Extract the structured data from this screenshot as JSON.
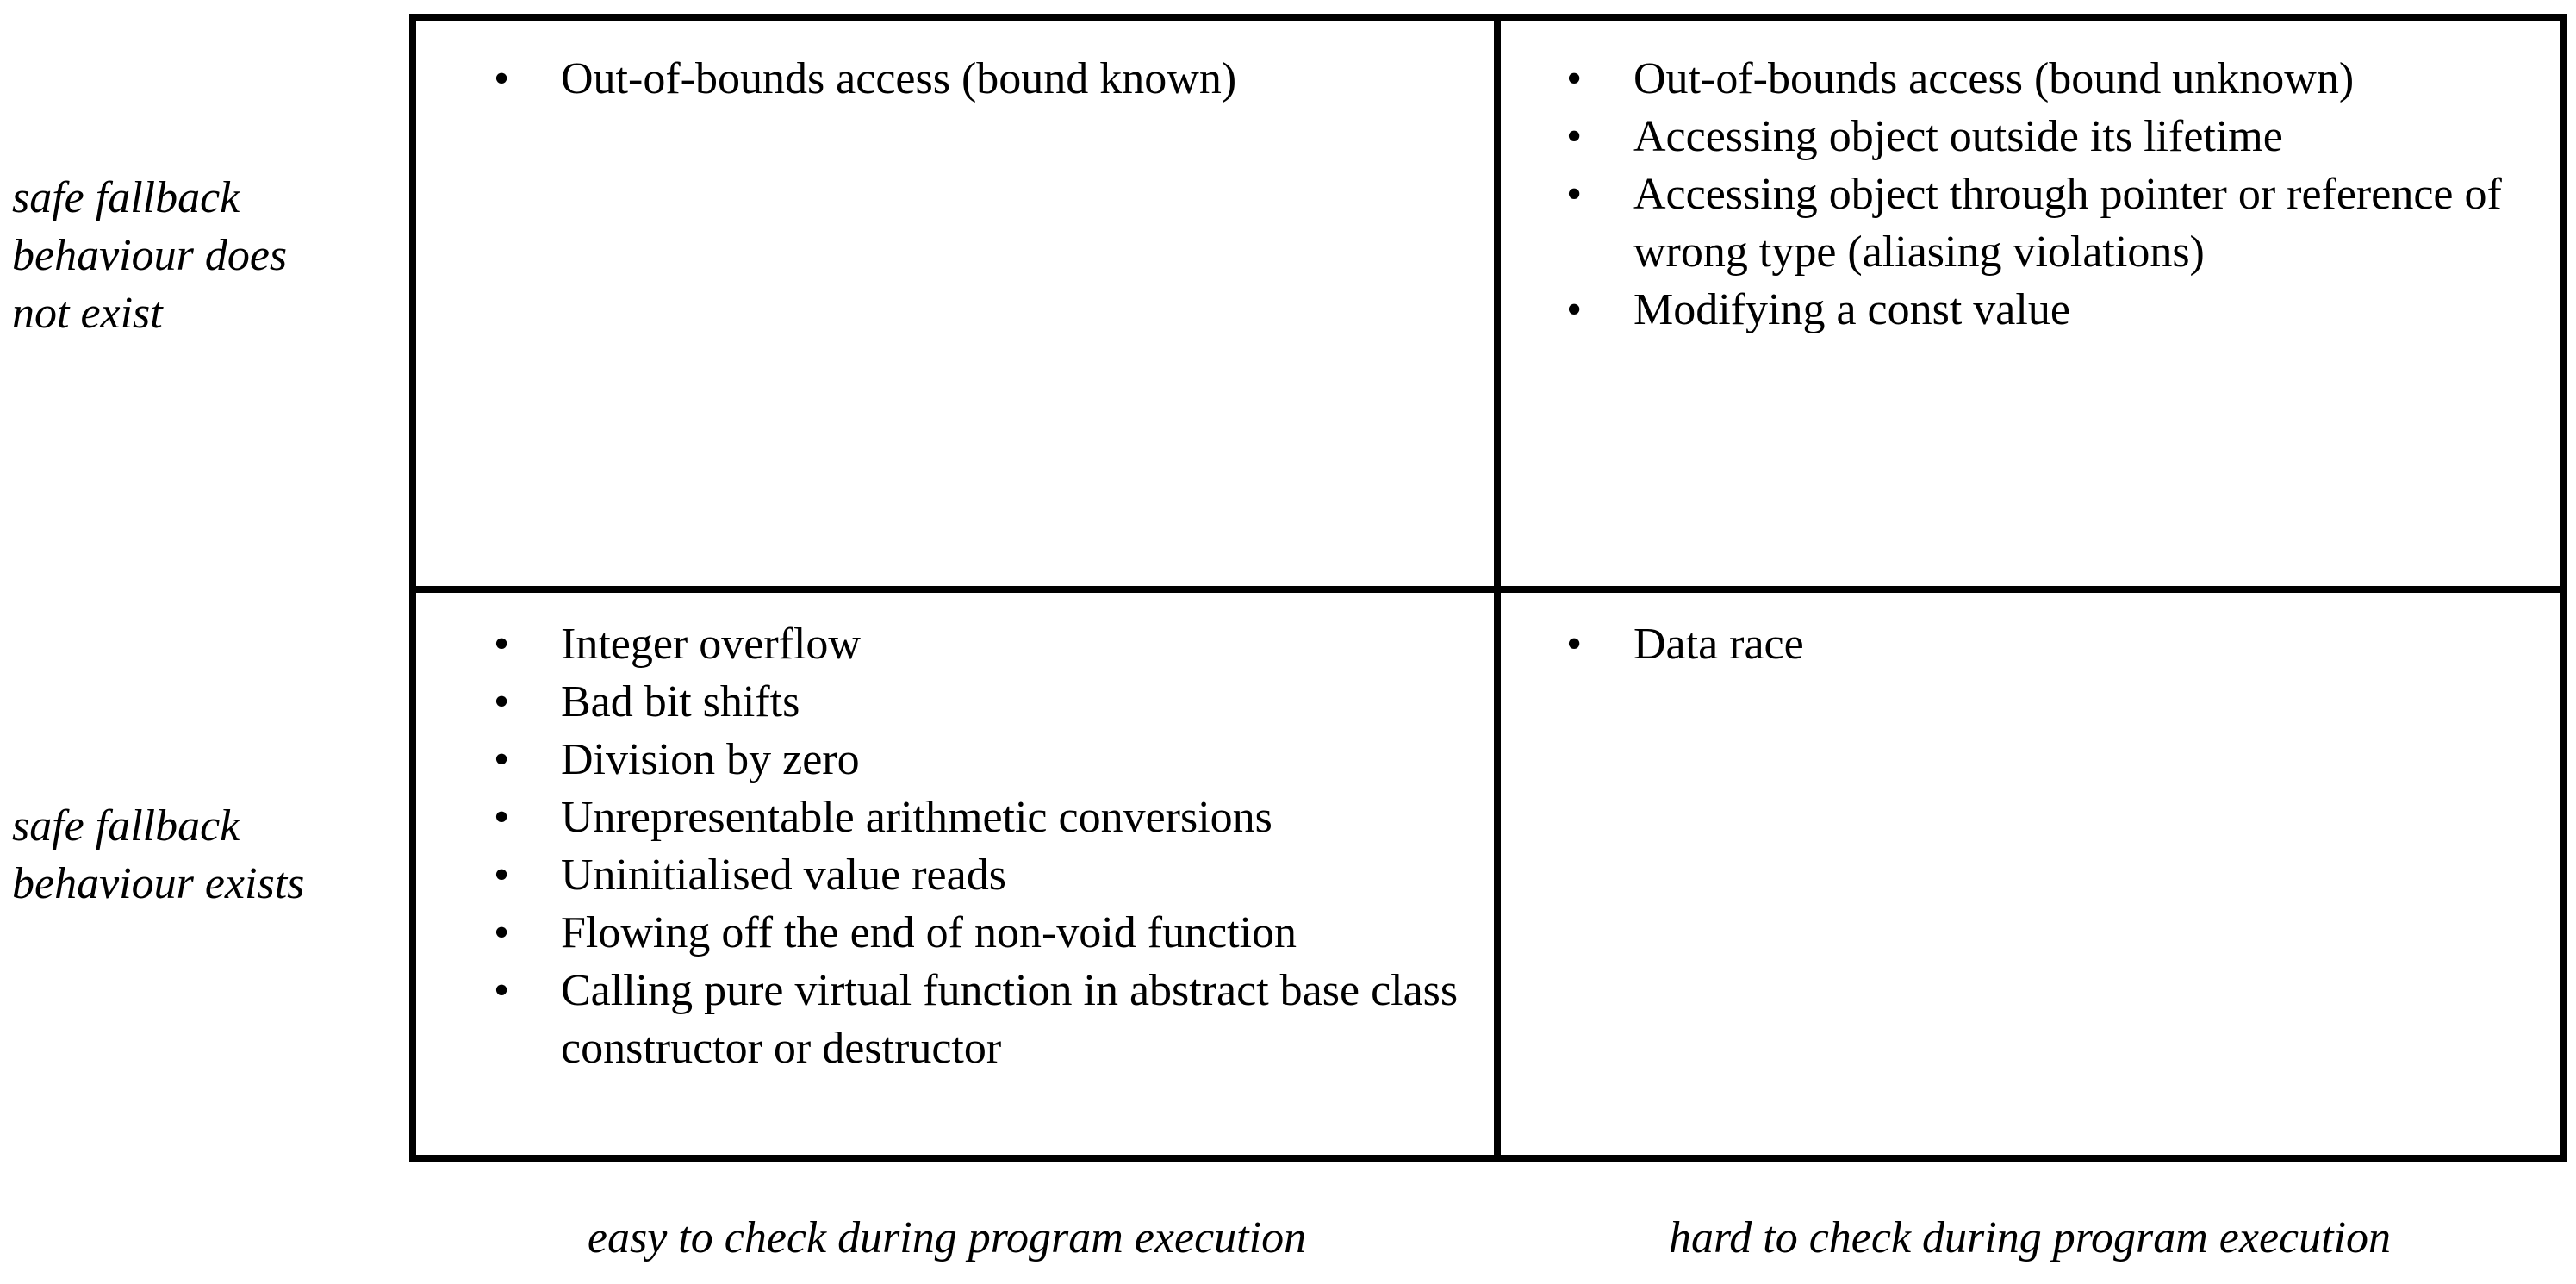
{
  "row_labels": {
    "top": [
      "safe fallback",
      "behaviour does",
      "not exist"
    ],
    "bottom": [
      "safe fallback",
      "behaviour exists"
    ]
  },
  "column_labels": {
    "left": "easy to check during program execution",
    "right": "hard to check during program execution"
  },
  "cells": {
    "top_left": [
      "Out-of-bounds access (bound known)"
    ],
    "top_right": [
      "Out-of-bounds access (bound unknown)",
      "Accessing object outside its lifetime",
      "Accessing object through pointer or reference of wrong type (aliasing violations)",
      "Modifying a const value"
    ],
    "bottom_left": [
      "Integer overflow",
      "Bad bit shifts",
      "Division by zero",
      "Unrepresentable arithmetic conversions",
      "Uninitialised value reads",
      "Flowing off the end of non-void function",
      "Calling pure virtual function in abstract base class constructor or destructor"
    ],
    "bottom_right": [
      "Data race"
    ]
  },
  "bullet_symbol": "•",
  "colors": {
    "text": "#000000",
    "grid_lines": "#000000",
    "background": "#ffffff"
  }
}
